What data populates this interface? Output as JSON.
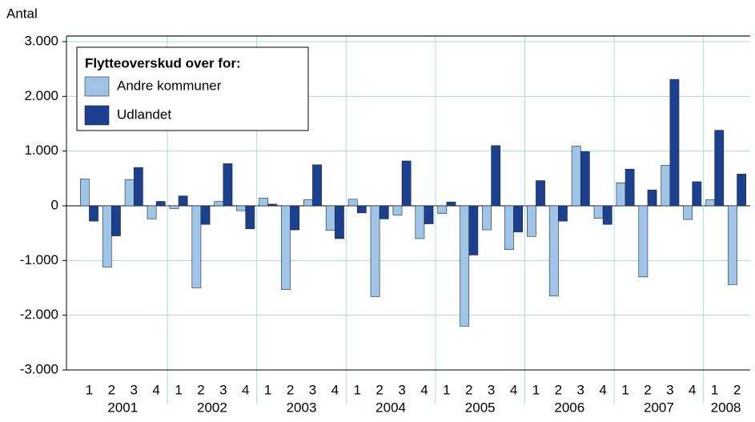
{
  "chart_data": {
    "type": "bar",
    "y_label": "Antal",
    "legend_title": "Flytteoverskud over for:",
    "categories": [
      "1",
      "2",
      "3",
      "4",
      "1",
      "2",
      "3",
      "4",
      "1",
      "2",
      "3",
      "4",
      "1",
      "2",
      "3",
      "4",
      "1",
      "2",
      "3",
      "4",
      "1",
      "2",
      "3",
      "4",
      "1",
      "2",
      "3",
      "4",
      "1",
      "2"
    ],
    "years": [
      "2001",
      "2002",
      "2003",
      "2004",
      "2005",
      "2006",
      "2007",
      "2008"
    ],
    "series": [
      {
        "name": "Andre kommuner",
        "color": "#9fc4e6",
        "values": [
          490,
          -1120,
          480,
          -240,
          -50,
          -1500,
          80,
          -90,
          140,
          -1530,
          110,
          -450,
          120,
          -1660,
          -170,
          -600,
          -140,
          -2200,
          -440,
          -800,
          -560,
          -1650,
          1090,
          -230,
          420,
          -1300,
          740,
          -250,
          110,
          -1440
        ]
      },
      {
        "name": "Udlandet",
        "color": "#1c3f8e",
        "values": [
          -280,
          -550,
          700,
          80,
          180,
          -340,
          770,
          -420,
          30,
          -440,
          750,
          -600,
          -130,
          -240,
          820,
          -330,
          70,
          -900,
          1100,
          -480,
          460,
          -280,
          990,
          -340,
          670,
          290,
          2310,
          440,
          1380,
          580
        ]
      }
    ],
    "ylim": [
      -3000,
      3000
    ],
    "yticks": [
      {
        "value": -3000,
        "label": "-3.000"
      },
      {
        "value": -2000,
        "label": "-2.000"
      },
      {
        "value": -1000,
        "label": "-1.000"
      },
      0,
      {
        "value": 1000,
        "label": "1.000"
      },
      {
        "value": 2000,
        "label": "2.000"
      },
      {
        "value": 3000,
        "label": "3.000"
      }
    ],
    "grid": true
  }
}
